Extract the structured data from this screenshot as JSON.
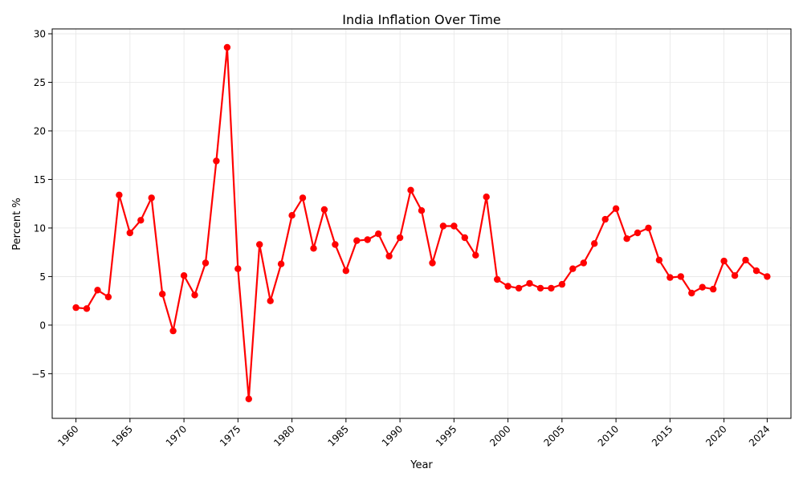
{
  "chart_data": {
    "type": "line",
    "title": "India Inflation Over Time",
    "xlabel": "Year",
    "ylabel": "Percent %",
    "xlim": [
      1957.8,
      2026.2
    ],
    "ylim": [
      -9.6,
      30.5
    ],
    "x_ticks": [
      1960,
      1965,
      1970,
      1975,
      1980,
      1985,
      1990,
      1995,
      2000,
      2005,
      2010,
      2015,
      2020,
      2024
    ],
    "y_ticks": [
      -5,
      0,
      5,
      10,
      15,
      20,
      25,
      30
    ],
    "y_tick_labels": [
      "−5",
      "0",
      "5",
      "10",
      "15",
      "20",
      "25",
      "30"
    ],
    "grid": true,
    "legend": "none",
    "series": [
      {
        "color": "#ff0000",
        "marker": "circle",
        "x": [
          1960,
          1961,
          1962,
          1963,
          1964,
          1965,
          1966,
          1967,
          1968,
          1969,
          1970,
          1971,
          1972,
          1973,
          1974,
          1975,
          1976,
          1977,
          1978,
          1979,
          1980,
          1981,
          1982,
          1983,
          1984,
          1985,
          1986,
          1987,
          1988,
          1989,
          1990,
          1991,
          1992,
          1993,
          1994,
          1995,
          1996,
          1997,
          1998,
          1999,
          2000,
          2001,
          2002,
          2003,
          2004,
          2005,
          2006,
          2007,
          2008,
          2009,
          2010,
          2011,
          2012,
          2013,
          2014,
          2015,
          2016,
          2017,
          2018,
          2019,
          2020,
          2021,
          2022,
          2023,
          2024
        ],
        "values": [
          1.8,
          1.7,
          3.6,
          2.9,
          13.4,
          9.5,
          10.8,
          13.1,
          3.2,
          -0.6,
          5.1,
          3.1,
          6.4,
          16.9,
          28.6,
          5.8,
          -7.6,
          8.3,
          2.5,
          6.3,
          11.3,
          13.1,
          7.9,
          11.9,
          8.3,
          5.6,
          8.7,
          8.8,
          9.4,
          7.1,
          9.0,
          13.9,
          11.8,
          6.4,
          10.2,
          10.2,
          9.0,
          7.2,
          13.2,
          4.7,
          4.0,
          3.8,
          4.3,
          3.8,
          3.8,
          4.2,
          5.8,
          6.4,
          8.4,
          10.9,
          12.0,
          8.9,
          9.5,
          10.0,
          6.7,
          4.9,
          5.0,
          3.3,
          3.9,
          3.7,
          6.6,
          5.1,
          6.7,
          5.6,
          5.0
        ]
      }
    ]
  }
}
